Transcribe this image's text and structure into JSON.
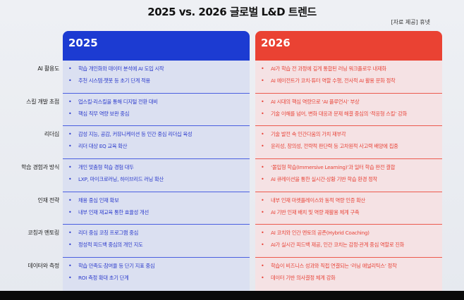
{
  "title": "2025 vs. 2026  글로벌 L&D 트렌드",
  "source": "[자료 제공] 휴넷",
  "colors": {
    "blue": "#1c3bd2",
    "red": "#ea4233"
  },
  "categories": [
    "AI 활용도",
    "스킬 개발 초점",
    "리더십",
    "학습 경험과 방식",
    "인재 전략",
    "코칭과 멘토링",
    "데이터와 측정"
  ],
  "y2025": {
    "header": "2025",
    "rows": [
      [
        "학습 개인화와 데이터 분석에 AI 도입 시작",
        "추천 시스템·챗봇 등 초기 단계 적용"
      ],
      [
        "업스킬·리스킬을 통해 디지털 전환 대비",
        "핵심 직무 역량 보완 중심"
      ],
      [
        "감성 지능, 공감, 커뮤니케이션 등 인간 중심 리더십 육성",
        "리더 대상 EQ 교육 확산"
      ],
      [
        "개인 맞춤형 학습 경험 대두",
        "LXP, 마이크로러닝, 하이브리드 러닝 확산"
      ],
      [
        "채용 중심 인재 확보",
        "내부 인재 재교육 통한 효율성 개선"
      ],
      [
        "리더 중심 코칭 프로그램 중심",
        "정성적 피드백 중심의 개인 지도"
      ],
      [
        "학습 만족도·참여율 등 단기 지표 중심",
        "ROI 측정 확대 초기 단계"
      ]
    ]
  },
  "y2026": {
    "header": "2026",
    "rows": [
      [
        "AI가 학습 전 과정에 깊게 통합된 러닝 워크플로우 내재화",
        "AI 에이전트가 코치·튜터 역할 수행, 전사적 AI 활용 문화 정착"
      ],
      [
        "AI 시대의 핵심 역량으로 ‘AI 플루언시’ 부상",
        "기술 이해를 넘어, 변화 대응과 문제 해결 중심의 ‘적응형 스킬’ 강화"
      ],
      [
        "기술 발전 속 인간다움의 가치 재부각",
        "윤리성, 창의성, 전략적 판단력 등 고차원적 사고력 배양에 집중"
      ],
      [
        "‘몰입형 학습(Immersive Learning)’과 일터 학습 완전 결합",
        "AI 큐레이션을 통한 실시간·상황 기반 학습 환경 정착"
      ],
      [
        "내부 인재 마켓플레이스와 동적 역량 인증 확산",
        "AI 기반 인재 배치 및 역량 재활용 체계 구축"
      ],
      [
        "AI 코치와 인간 멘토의 공존(Hybrid Coaching)",
        "AI가 실시간 피드백 제공, 인간 코치는 감정·관계 중심 역할로 진화"
      ],
      [
        "학습이 비즈니스 성과와 직접 연결되는 ‘러닝 애널리틱스’ 정착",
        "데이터 기반 의사결정 체계 강화"
      ]
    ]
  },
  "bullet": "•"
}
